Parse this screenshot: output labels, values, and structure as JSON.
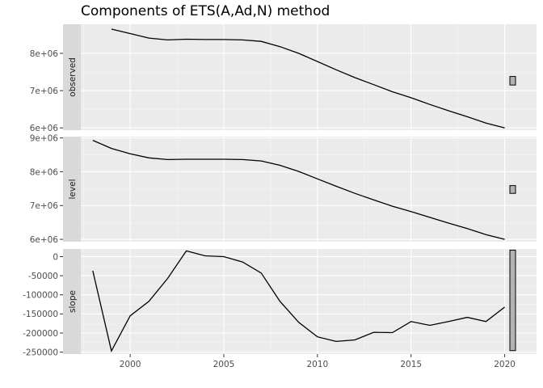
{
  "chart_data": {
    "type": "line",
    "title": "Components of ETS(A,Ad,N) method",
    "xlabel": "",
    "ylabel": "",
    "x_ticks": [
      2000,
      2005,
      2010,
      2015,
      2020
    ],
    "x_tick_labels": [
      "2000",
      "2005",
      "2010",
      "2015",
      "2020"
    ],
    "xlim": [
      1996.5,
      2021.7
    ],
    "grid": true,
    "panels": [
      {
        "name": "observed",
        "ylim": [
          5940000,
          8780000
        ],
        "y_ticks": [
          6000000,
          7000000,
          8000000
        ],
        "y_tick_labels": [
          "6e+06",
          "7e+06",
          "8e+06"
        ],
        "series": [
          {
            "x": [
              1999,
              2000,
              2001,
              2002,
              2003,
              2004,
              2005,
              2006,
              2007,
              2008,
              2009,
              2010,
              2011,
              2012,
              2013,
              2014,
              2015,
              2016,
              2017,
              2018,
              2019,
              2020
            ],
            "values": [
              8650000,
              8530000,
              8410000,
              8360000,
              8380000,
              8370000,
              8370000,
              8360000,
              8320000,
              8180000,
              8000000,
              7780000,
              7560000,
              7350000,
              7160000,
              6970000,
              6810000,
              6630000,
              6460000,
              6300000,
              6130000,
              6000000
            ]
          }
        ],
        "scale_bar": {
          "range": [
            7150000,
            7380000
          ]
        }
      },
      {
        "name": "level",
        "ylim": [
          5930000,
          9040000
        ],
        "y_ticks": [
          6000000,
          7000000,
          8000000,
          9000000
        ],
        "y_tick_labels": [
          "6e+06",
          "7e+06",
          "8e+06",
          "9e+06"
        ],
        "series": [
          {
            "x": [
              1998,
              1999,
              2000,
              2001,
              2002,
              2003,
              2004,
              2005,
              2006,
              2007,
              2008,
              2009,
              2010,
              2011,
              2012,
              2013,
              2014,
              2015,
              2016,
              2017,
              2018,
              2019,
              2020
            ],
            "values": [
              8930000,
              8690000,
              8530000,
              8410000,
              8360000,
              8370000,
              8370000,
              8370000,
              8360000,
              8320000,
              8190000,
              8010000,
              7790000,
              7570000,
              7360000,
              7170000,
              6980000,
              6820000,
              6650000,
              6480000,
              6320000,
              6140000,
              6000000
            ]
          }
        ],
        "scale_bar": {
          "range": [
            7360000,
            7590000
          ]
        }
      },
      {
        "name": "slope",
        "ylim": [
          -255000,
          20000
        ],
        "y_ticks": [
          -250000,
          -200000,
          -150000,
          -100000,
          -50000,
          0
        ],
        "y_tick_labels": [
          "-250000",
          "-200000",
          "-150000",
          "-100000",
          "-50000",
          "0"
        ],
        "series": [
          {
            "x": [
              1998,
              1999,
              2000,
              2001,
              2002,
              2003,
              2004,
              2005,
              2006,
              2007,
              2008,
              2009,
              2010,
              2011,
              2012,
              2013,
              2014,
              2015,
              2016,
              2017,
              2018,
              2019,
              2020
            ],
            "values": [
              -37000,
              -247000,
              -155000,
              -117000,
              -57000,
              15000,
              2000,
              0,
              -14000,
              -43000,
              -117000,
              -172000,
              -210000,
              -222000,
              -218000,
              -198000,
              -199000,
              -170000,
              -180000,
              -170000,
              -159000,
              -170000,
              -132000
            ]
          }
        ],
        "scale_bar": {
          "range": [
            -246000,
            17000
          ]
        }
      }
    ]
  }
}
